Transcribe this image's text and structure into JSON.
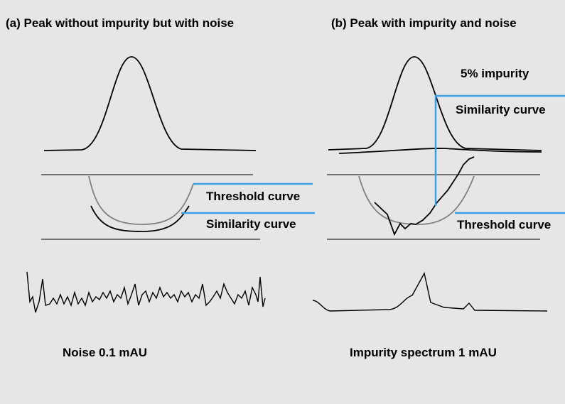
{
  "panels": [
    {
      "title": "(a) Peak without impurity but with noise",
      "labels": [
        "Threshold curve",
        "Similarity curve"
      ],
      "caption": "Noise 0.1 mAU"
    },
    {
      "title": "(b) Peak with impurity and noise",
      "annotation": "5% impurity",
      "labels": [
        "Similarity curve",
        "Threshold curve"
      ],
      "caption": "Impurity spectrum 1 mAU"
    }
  ]
}
